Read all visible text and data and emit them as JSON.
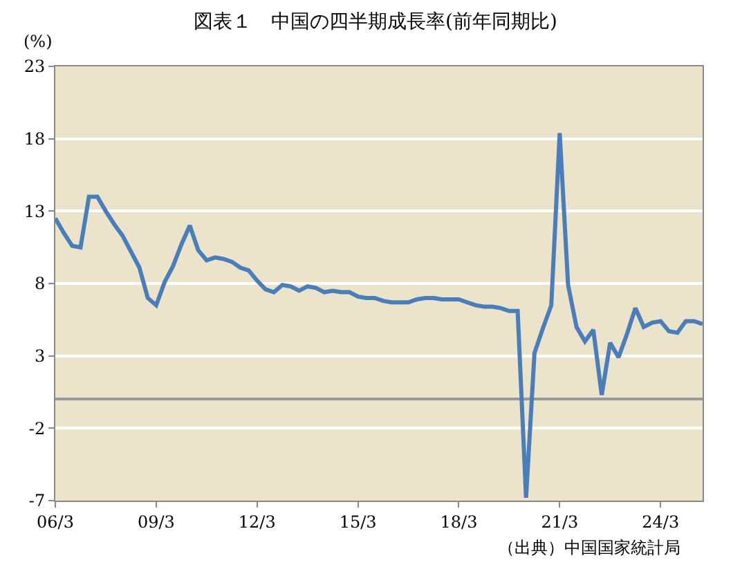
{
  "chart_data": {
    "type": "line",
    "title": "図表１　中国の四半期成長率(前年同期比)",
    "ylabel": "(%)",
    "categories": [
      "06/3",
      null,
      null,
      null,
      null,
      null,
      null,
      null,
      null,
      null,
      null,
      null,
      "09/3",
      null,
      null,
      null,
      null,
      null,
      null,
      null,
      null,
      null,
      null,
      null,
      "12/3",
      null,
      null,
      null,
      null,
      null,
      null,
      null,
      null,
      null,
      null,
      null,
      "15/3",
      null,
      null,
      null,
      null,
      null,
      null,
      null,
      null,
      null,
      null,
      null,
      "18/3",
      null,
      null,
      null,
      null,
      null,
      null,
      null,
      null,
      null,
      null,
      null,
      "21/3",
      null,
      null,
      null,
      null,
      null,
      null,
      null,
      null,
      null,
      null,
      null,
      "24/3",
      null,
      null,
      null,
      null,
      null
    ],
    "series": [
      {
        "color": "#4a7ebb",
        "values": [
          12.5,
          11.5,
          10.6,
          10.5,
          14.0,
          14.0,
          13.0,
          12.1,
          11.3,
          10.2,
          9.1,
          7.0,
          6.5,
          8.1,
          9.2,
          10.7,
          12.0,
          10.3,
          9.6,
          9.8,
          9.7,
          9.5,
          9.1,
          8.9,
          8.2,
          7.6,
          7.4,
          7.9,
          7.8,
          7.5,
          7.8,
          7.7,
          7.4,
          7.5,
          7.4,
          7.4,
          7.1,
          7.0,
          7.0,
          6.8,
          6.7,
          6.7,
          6.7,
          6.9,
          7.0,
          7.0,
          6.9,
          6.9,
          6.9,
          6.7,
          6.5,
          6.4,
          6.4,
          6.3,
          6.1,
          6.1,
          -6.8,
          3.2,
          4.9,
          6.5,
          18.4,
          7.9,
          5.0,
          4.0,
          4.8,
          0.3,
          3.9,
          2.9,
          4.5,
          6.3,
          5.0,
          5.3,
          5.4,
          4.7,
          4.6,
          5.4,
          5.4,
          5.2
        ]
      }
    ],
    "ylim": [
      -7,
      23
    ],
    "yticks": [
      -7,
      -2,
      3,
      8,
      13,
      18,
      23
    ],
    "grid": "y",
    "marker": "none",
    "line_style": "solid",
    "annotations": [
      "（出典）中国国家統計局"
    ]
  }
}
